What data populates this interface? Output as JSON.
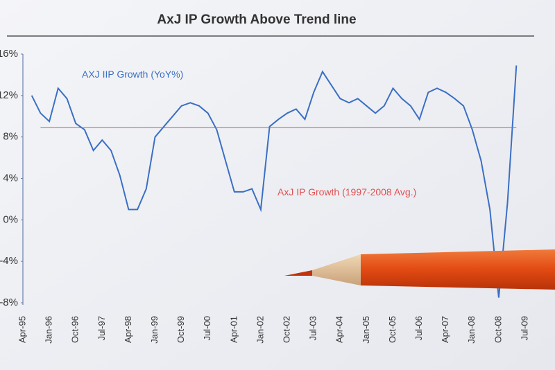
{
  "chart_data": {
    "type": "line",
    "title": "AxJ IP Growth Above Trend line",
    "categories": [
      "Apr-95",
      null,
      null,
      "Jan-96",
      null,
      null,
      "Oct-96",
      null,
      null,
      "Jul-97",
      null,
      null,
      "Apr-98",
      null,
      null,
      "Jan-99",
      null,
      null,
      "Oct-99",
      null,
      null,
      "Jul-00",
      null,
      null,
      "Apr-01",
      null,
      null,
      "Jan-02",
      null,
      null,
      "Oct-02",
      null,
      null,
      "Jul-03",
      null,
      null,
      "Apr-04",
      null,
      null,
      "Jan-05",
      null,
      null,
      "Oct-05",
      null,
      null,
      "Jul-06",
      null,
      null,
      "Apr-07",
      null,
      null,
      "Jan-08",
      null,
      null,
      "Oct-08",
      null,
      null,
      "Jul-09"
    ],
    "series": [
      {
        "name": "AXJ IIP Growth (YoY%)",
        "color": "#3a6fc4",
        "values": [
          null,
          12,
          10.3,
          9.5,
          12.7,
          11.7,
          9.3,
          8.7,
          6.7,
          7.7,
          6.7,
          4.3,
          1,
          1,
          3,
          8,
          9,
          10,
          11,
          11.3,
          11,
          10.3,
          8.7,
          5.7,
          2.7,
          2.7,
          3,
          1,
          9,
          9.7,
          10.3,
          10.7,
          9.7,
          12.3,
          14.3,
          13,
          11.7,
          11.3,
          11.7,
          11,
          10.3,
          11,
          12.7,
          11.7,
          11,
          9.7,
          12.3,
          12.7,
          12.3,
          11.7,
          11,
          8.7,
          5.7,
          1,
          -7.5,
          1.7,
          14.9,
          null
        ]
      },
      {
        "name": "AxJ IP Growth (1997-2008 Avg.)",
        "color": "#e05050",
        "values": [
          null,
          null,
          8.9,
          8.9,
          8.9,
          8.9,
          8.9,
          8.9,
          8.9,
          8.9,
          8.9,
          8.9,
          8.9,
          8.9,
          8.9,
          8.9,
          8.9,
          8.9,
          8.9,
          8.9,
          8.9,
          8.9,
          8.9,
          8.9,
          8.9,
          8.9,
          8.9,
          8.9,
          8.9,
          8.9,
          8.9,
          8.9,
          8.9,
          8.9,
          8.9,
          8.9,
          8.9,
          8.9,
          8.9,
          8.9,
          8.9,
          8.9,
          8.9,
          8.9,
          8.9,
          8.9,
          8.9,
          8.9,
          8.9,
          8.9,
          8.9,
          8.9,
          8.9,
          8.9,
          8.9,
          8.9,
          8.9,
          null
        ]
      }
    ],
    "ylim": [
      -8,
      16
    ],
    "yticks": [
      {
        "value": 16,
        "label": "16%"
      },
      {
        "value": 12,
        "label": "12%"
      },
      {
        "value": 8,
        "label": "8%"
      },
      {
        "value": 4,
        "label": "4%"
      },
      {
        "value": 0,
        "label": "0%"
      },
      {
        "value": -4,
        "label": "-4%"
      },
      {
        "value": -8,
        "label": "-8%"
      }
    ]
  }
}
